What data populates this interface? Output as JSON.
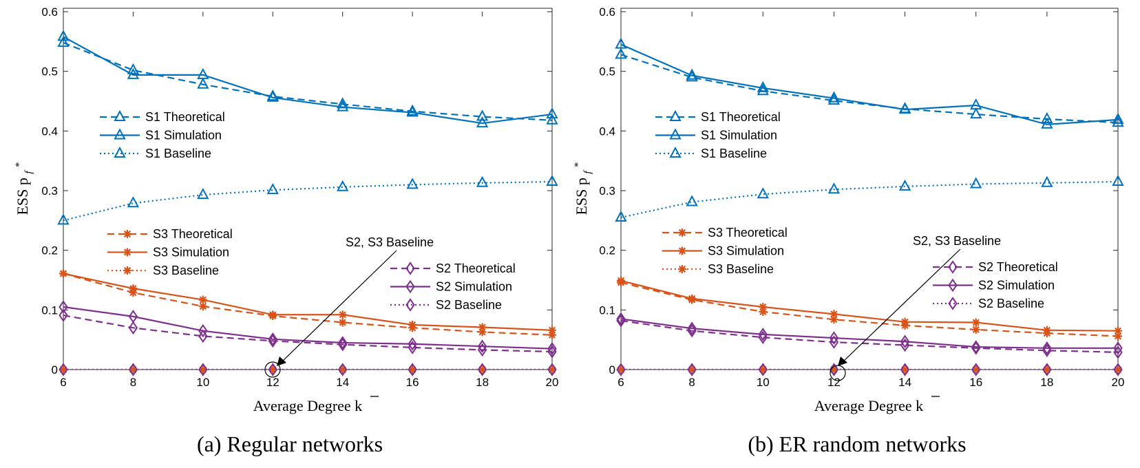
{
  "colors": {
    "S1": "#0072BD",
    "S3": "#D95319",
    "S2": "#7E2F8E"
  },
  "chart_data": [
    {
      "type": "line",
      "caption": "(a) Regular networks",
      "xlabel": "Average Degree k",
      "ylabel": "ESS p",
      "x": [
        6,
        8,
        10,
        12,
        14,
        16,
        18,
        20
      ],
      "xlim": [
        6,
        20
      ],
      "ylim": [
        0,
        0.6
      ],
      "xticks": [
        "6",
        "8",
        "10",
        "12",
        "14",
        "16",
        "18",
        "20"
      ],
      "yticks": [
        "0",
        "0.1",
        "0.2",
        "0.3",
        "0.4",
        "0.5",
        "0.6"
      ],
      "annotation": "S2, S3 Baseline",
      "legends": [
        [
          "S1 Theoretical",
          "S1 Simulation",
          "S1 Baseline"
        ],
        [
          "S3 Theoretical",
          "S3 Simulation",
          "S3 Baseline"
        ],
        [
          "S2 Theoretical",
          "S2 Simulation",
          "S2 Baseline"
        ]
      ],
      "series": [
        {
          "name": "S1 Theoretical",
          "group": "S1",
          "style": "dashed",
          "marker": "triangle",
          "values": [
            0.548,
            0.502,
            0.478,
            0.458,
            0.445,
            0.433,
            0.424,
            0.418
          ]
        },
        {
          "name": "S1 Simulation",
          "group": "S1",
          "style": "solid",
          "marker": "triangle",
          "values": [
            0.558,
            0.494,
            0.494,
            0.456,
            0.44,
            0.431,
            0.413,
            0.428
          ]
        },
        {
          "name": "S1 Baseline",
          "group": "S1",
          "style": "dotted",
          "marker": "triangle",
          "values": [
            0.25,
            0.279,
            0.293,
            0.301,
            0.306,
            0.31,
            0.313,
            0.315
          ]
        },
        {
          "name": "S3 Theoretical",
          "group": "S3",
          "style": "dashed",
          "marker": "star",
          "values": [
            0.161,
            0.129,
            0.106,
            0.09,
            0.079,
            0.07,
            0.063,
            0.058
          ]
        },
        {
          "name": "S3 Simulation",
          "group": "S3",
          "style": "solid",
          "marker": "star",
          "values": [
            0.161,
            0.136,
            0.117,
            0.092,
            0.092,
            0.075,
            0.071,
            0.066
          ]
        },
        {
          "name": "S3 Baseline",
          "group": "S3",
          "style": "dotted",
          "marker": "star",
          "values": [
            0,
            0,
            0,
            0,
            0,
            0,
            0,
            0
          ]
        },
        {
          "name": "S2 Theoretical",
          "group": "S2",
          "style": "dashed",
          "marker": "diamond",
          "values": [
            0.091,
            0.07,
            0.056,
            0.048,
            0.042,
            0.037,
            0.033,
            0.03
          ]
        },
        {
          "name": "S2 Simulation",
          "group": "S2",
          "style": "solid",
          "marker": "diamond",
          "values": [
            0.105,
            0.089,
            0.065,
            0.051,
            0.045,
            0.043,
            0.039,
            0.035
          ]
        },
        {
          "name": "S2 Baseline",
          "group": "S2",
          "style": "dotted",
          "marker": "diamond",
          "values": [
            0,
            0,
            0,
            0,
            0,
            0,
            0,
            0
          ]
        }
      ]
    },
    {
      "type": "line",
      "caption": "(b) ER random networks",
      "xlabel": "Average Degree k",
      "ylabel": "ESS p",
      "x": [
        6,
        8,
        10,
        12,
        14,
        16,
        18,
        20
      ],
      "xlim": [
        6,
        20
      ],
      "ylim": [
        0,
        0.6
      ],
      "xticks": [
        "6",
        "8",
        "10",
        "12",
        "14",
        "16",
        "18",
        "20"
      ],
      "yticks": [
        "0",
        "0.1",
        "0.2",
        "0.3",
        "0.4",
        "0.5",
        "0.6"
      ],
      "annotation": "S2, S3 Baseline",
      "legends": [
        [
          "S1 Theoretical",
          "S1 Simulation",
          "S1 Baseline"
        ],
        [
          "S3 Theoretical",
          "S3 Simulation",
          "S3 Baseline"
        ],
        [
          "S2 Theoretical",
          "S2 Simulation",
          "S2 Baseline"
        ]
      ],
      "series": [
        {
          "name": "S1 Theoretical",
          "group": "S1",
          "style": "dashed",
          "marker": "triangle",
          "values": [
            0.528,
            0.49,
            0.467,
            0.451,
            0.437,
            0.428,
            0.42,
            0.414
          ]
        },
        {
          "name": "S1 Simulation",
          "group": "S1",
          "style": "solid",
          "marker": "triangle",
          "values": [
            0.545,
            0.493,
            0.472,
            0.455,
            0.436,
            0.443,
            0.411,
            0.419
          ]
        },
        {
          "name": "S1 Baseline",
          "group": "S1",
          "style": "dotted",
          "marker": "triangle",
          "values": [
            0.255,
            0.281,
            0.294,
            0.302,
            0.307,
            0.311,
            0.313,
            0.315
          ]
        },
        {
          "name": "S3 Theoretical",
          "group": "S3",
          "style": "dashed",
          "marker": "star",
          "values": [
            0.146,
            0.117,
            0.097,
            0.084,
            0.074,
            0.067,
            0.061,
            0.056
          ]
        },
        {
          "name": "S3 Simulation",
          "group": "S3",
          "style": "solid",
          "marker": "star",
          "values": [
            0.149,
            0.119,
            0.105,
            0.093,
            0.08,
            0.079,
            0.066,
            0.065
          ]
        },
        {
          "name": "S3 Baseline",
          "group": "S3",
          "style": "dotted",
          "marker": "star",
          "values": [
            0,
            0,
            0,
            0,
            0,
            0,
            0,
            0
          ]
        },
        {
          "name": "S2 Theoretical",
          "group": "S2",
          "style": "dashed",
          "marker": "diamond",
          "values": [
            0.082,
            0.065,
            0.054,
            0.046,
            0.041,
            0.036,
            0.032,
            0.029
          ]
        },
        {
          "name": "S2 Simulation",
          "group": "S2",
          "style": "solid",
          "marker": "diamond",
          "values": [
            0.085,
            0.069,
            0.059,
            0.053,
            0.047,
            0.038,
            0.036,
            0.036
          ]
        },
        {
          "name": "S2 Baseline",
          "group": "S2",
          "style": "dotted",
          "marker": "diamond",
          "values": [
            0,
            0,
            0,
            0,
            0,
            0,
            0,
            0
          ]
        }
      ]
    }
  ]
}
